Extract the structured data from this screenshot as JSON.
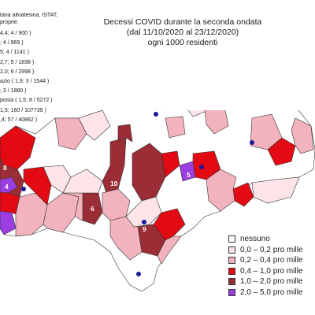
{
  "title": {
    "line1": "Decessi COVID durante la seconda ondata",
    "line2": "(dal 11/10/2020 al 23/12/2020)",
    "line3": "ogni 1000 residenti"
  },
  "source_notes": [
    "taria altoatesina, ISTAT,",
    "proprie."
  ],
  "district_stats": [
    "4,4; 4 / 900 )",
    "; 4 / 969 )",
    "5; 4 / 1141 )",
    "2,7; 5 / 1838 )",
    "2,0; 6 / 2998 )",
    "azio ( 1,9; 3 / 1544 )",
    "; 3 / 1880 )",
    "posta ( 1,5; 8 / 5272 )",
    "1,5; 160 / 107739 )",
    ",4; 57 / 40862 )"
  ],
  "map_labels": [
    "8",
    "4",
    "10",
    "5",
    "6",
    "9"
  ],
  "colors": {
    "nessuno": "#ffffff",
    "c0_02": "#fce4e8",
    "c02_04": "#f2b3bf",
    "c04_10": "#e30a14",
    "c10_20": "#9b2d36",
    "c20_50": "#9b3de0",
    "border": "#333333",
    "dot": "#1a1a9c"
  },
  "legend": [
    {
      "label": "nessuno",
      "color": "#ffffff"
    },
    {
      "label": "0,0 – 0,2 pro mille",
      "color": "#fce4e8"
    },
    {
      "label": "0,2 – 0,4 pro mille",
      "color": "#f2b3bf"
    },
    {
      "label": "0,4 – 1,0 pro mille",
      "color": "#e30a14"
    },
    {
      "label": "1,0 – 2,0 pro mille",
      "color": "#9b2d36"
    },
    {
      "label": "2,0 – 5,0 pro mille",
      "color": "#9b3de0"
    }
  ]
}
